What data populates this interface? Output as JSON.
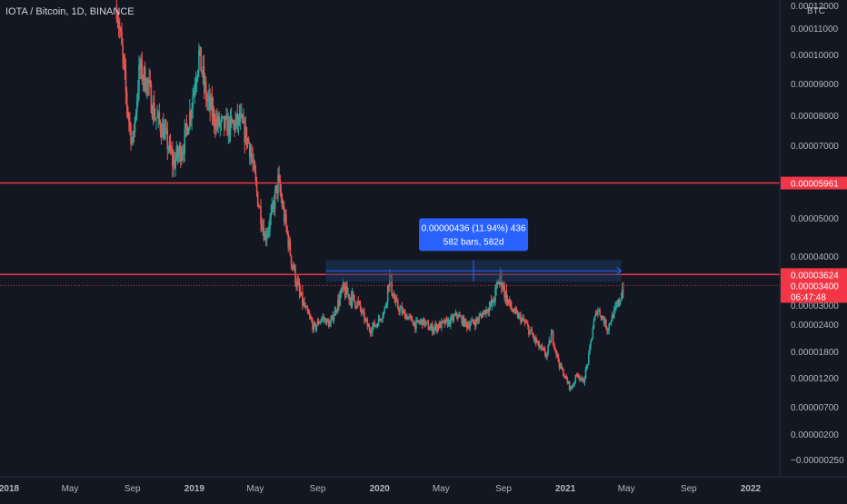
{
  "chart": {
    "title": "IOTA / Bitcoin, 1D, BINANCE",
    "price_unit": "BTC"
  },
  "colors": {
    "background": "#131722",
    "up": "#26a69a",
    "down": "#ef5350",
    "resistance_line": "#f23645",
    "measure_box": "#1e3a5f",
    "measure_label": "#2962ff",
    "text": "#d1d4dc"
  },
  "measure_tooltip": {
    "line1": "0.00000436 (11.94%) 436",
    "line2": "582 bars, 582d"
  },
  "price_badges": {
    "upper_level": "0.00005961",
    "lower_level": "0.00003624",
    "last_price": "0.00003400",
    "countdown": "06:47:48"
  },
  "chart_data": {
    "type": "candlestick",
    "title": "IOTA / Bitcoin, 1D, BINANCE",
    "x_tick_labels": [
      "2018",
      "May",
      "Sep",
      "2019",
      "May",
      "Sep",
      "2020",
      "May",
      "Sep",
      "2021",
      "May",
      "Sep",
      "2022"
    ],
    "y_tick_labels": [
      "0.00012000",
      "0.00011000",
      "0.00010000",
      "0.00009000",
      "0.00008000",
      "0.00007000",
      "0.00005000",
      "0.00004000",
      "0.00003000",
      "0.00002400",
      "0.00001800",
      "0.00001200",
      "0.00000700",
      "0.00000200",
      "−0.00000250"
    ],
    "horizontal_levels": [
      5.961e-05,
      3.624e-05
    ],
    "last_price": 3.4e-05,
    "measure": {
      "price_change": 4.36e-06,
      "percent_change": 11.94,
      "bars": 582,
      "days": 582,
      "from_date": "2019-09",
      "to_date": "2021-04"
    },
    "close_series": [
      {
        "date": "2018-08-01",
        "close": 0.00012
      },
      {
        "date": "2018-08-20",
        "close": 8.5e-05
      },
      {
        "date": "2018-09-01",
        "close": 7e-05
      },
      {
        "date": "2018-09-15",
        "close": 9.5e-05
      },
      {
        "date": "2018-10-01",
        "close": 9e-05
      },
      {
        "date": "2018-10-15",
        "close": 8e-05
      },
      {
        "date": "2018-11-01",
        "close": 7.5e-05
      },
      {
        "date": "2018-11-20",
        "close": 6.5e-05
      },
      {
        "date": "2018-12-10",
        "close": 7e-05
      },
      {
        "date": "2018-12-25",
        "close": 8.2e-05
      },
      {
        "date": "2019-01-10",
        "close": 0.0001
      },
      {
        "date": "2019-01-25",
        "close": 8.5e-05
      },
      {
        "date": "2019-02-15",
        "close": 7.7e-05
      },
      {
        "date": "2019-03-10",
        "close": 7.6e-05
      },
      {
        "date": "2019-04-01",
        "close": 7.8e-05
      },
      {
        "date": "2019-04-20",
        "close": 7e-05
      },
      {
        "date": "2019-05-05",
        "close": 5.6e-05
      },
      {
        "date": "2019-05-20",
        "close": 4.5e-05
      },
      {
        "date": "2019-06-01",
        "close": 5e-05
      },
      {
        "date": "2019-06-15",
        "close": 6e-05
      },
      {
        "date": "2019-06-25",
        "close": 5.2e-05
      },
      {
        "date": "2019-07-10",
        "close": 4e-05
      },
      {
        "date": "2019-07-25",
        "close": 3.3e-05
      },
      {
        "date": "2019-08-10",
        "close": 2.8e-05
      },
      {
        "date": "2019-08-25",
        "close": 2.3e-05
      },
      {
        "date": "2019-09-10",
        "close": 2.6e-05
      },
      {
        "date": "2019-09-25",
        "close": 2.4e-05
      },
      {
        "date": "2019-10-10",
        "close": 3e-05
      },
      {
        "date": "2019-10-20",
        "close": 3.3e-05
      },
      {
        "date": "2019-11-01",
        "close": 3.2e-05
      },
      {
        "date": "2019-11-20",
        "close": 3e-05
      },
      {
        "date": "2019-12-10",
        "close": 2.3e-05
      },
      {
        "date": "2019-12-25",
        "close": 2.4e-05
      },
      {
        "date": "2020-01-10",
        "close": 2.8e-05
      },
      {
        "date": "2020-01-20",
        "close": 3.6e-05
      },
      {
        "date": "2020-02-01",
        "close": 3e-05
      },
      {
        "date": "2020-02-20",
        "close": 2.7e-05
      },
      {
        "date": "2020-03-12",
        "close": 2.4e-05
      },
      {
        "date": "2020-03-25",
        "close": 2.5e-05
      },
      {
        "date": "2020-04-10",
        "close": 2.3e-05
      },
      {
        "date": "2020-05-01",
        "close": 2.4e-05
      },
      {
        "date": "2020-05-20",
        "close": 2.5e-05
      },
      {
        "date": "2020-06-01",
        "close": 2.7e-05
      },
      {
        "date": "2020-06-20",
        "close": 2.4e-05
      },
      {
        "date": "2020-07-10",
        "close": 2.5e-05
      },
      {
        "date": "2020-07-25",
        "close": 2.8e-05
      },
      {
        "date": "2020-08-10",
        "close": 3e-05
      },
      {
        "date": "2020-08-25",
        "close": 3.6e-05
      },
      {
        "date": "2020-09-05",
        "close": 3.2e-05
      },
      {
        "date": "2020-09-20",
        "close": 2.8e-05
      },
      {
        "date": "2020-10-10",
        "close": 2.5e-05
      },
      {
        "date": "2020-10-25",
        "close": 2.2e-05
      },
      {
        "date": "2020-11-10",
        "close": 1.9e-05
      },
      {
        "date": "2020-11-25",
        "close": 1.7e-05
      },
      {
        "date": "2020-12-05",
        "close": 2.2e-05
      },
      {
        "date": "2020-12-20",
        "close": 1.5e-05
      },
      {
        "date": "2021-01-01",
        "close": 1.2e-05
      },
      {
        "date": "2021-01-12",
        "close": 1e-05
      },
      {
        "date": "2021-01-25",
        "close": 1.3e-05
      },
      {
        "date": "2021-02-05",
        "close": 1.1e-05
      },
      {
        "date": "2021-02-15",
        "close": 1.6e-05
      },
      {
        "date": "2021-02-25",
        "close": 2.4e-05
      },
      {
        "date": "2021-03-05",
        "close": 2.9e-05
      },
      {
        "date": "2021-03-15",
        "close": 2.6e-05
      },
      {
        "date": "2021-03-25",
        "close": 2.3e-05
      },
      {
        "date": "2021-04-05",
        "close": 2.7e-05
      },
      {
        "date": "2021-04-15",
        "close": 3e-05
      },
      {
        "date": "2021-04-25",
        "close": 3.4e-05
      }
    ]
  }
}
